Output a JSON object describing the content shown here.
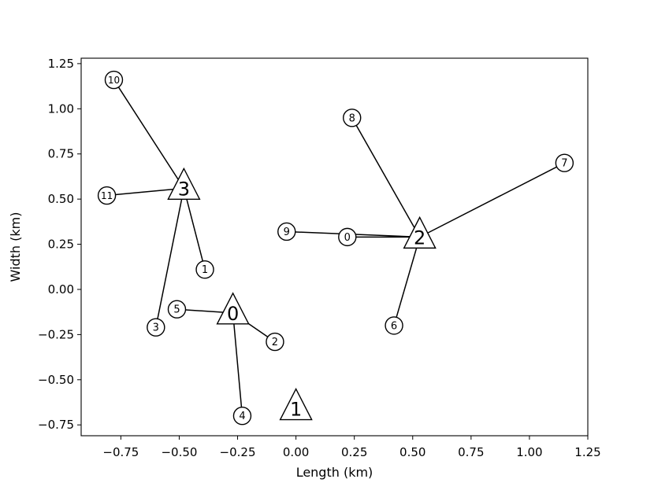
{
  "chart_data": {
    "type": "scatter",
    "title": "",
    "xlabel": "Length (km)",
    "ylabel": "Width (km)",
    "xlim": [
      -0.92,
      1.25
    ],
    "ylim": [
      -0.81,
      1.28
    ],
    "xticks": [
      -0.75,
      -0.5,
      -0.25,
      0.0,
      0.25,
      0.5,
      0.75,
      1.0,
      1.25
    ],
    "xtick_labels": [
      "−0.75",
      "−0.50",
      "−0.25",
      "0.00",
      "0.25",
      "0.50",
      "0.75",
      "1.00",
      "1.25"
    ],
    "yticks": [
      -0.75,
      -0.5,
      -0.25,
      0.0,
      0.25,
      0.5,
      0.75,
      1.0,
      1.25
    ],
    "ytick_labels": [
      "−0.75",
      "−0.50",
      "−0.25",
      "0.00",
      "0.25",
      "0.50",
      "0.75",
      "1.00",
      "1.25"
    ],
    "grid": false,
    "hubs": [
      {
        "label": "0",
        "x": -0.27,
        "y": -0.13
      },
      {
        "label": "1",
        "x": 0.0,
        "y": -0.66
      },
      {
        "label": "2",
        "x": 0.53,
        "y": 0.29
      },
      {
        "label": "3",
        "x": -0.48,
        "y": 0.56
      }
    ],
    "nodes": [
      {
        "label": "0",
        "x": 0.22,
        "y": 0.29
      },
      {
        "label": "1",
        "x": -0.39,
        "y": 0.11
      },
      {
        "label": "2",
        "x": -0.09,
        "y": -0.29
      },
      {
        "label": "3",
        "x": -0.6,
        "y": -0.21
      },
      {
        "label": "4",
        "x": -0.23,
        "y": -0.7
      },
      {
        "label": "5",
        "x": -0.51,
        "y": -0.11
      },
      {
        "label": "6",
        "x": 0.42,
        "y": -0.2
      },
      {
        "label": "7",
        "x": 1.15,
        "y": 0.7
      },
      {
        "label": "8",
        "x": 0.24,
        "y": 0.95
      },
      {
        "label": "9",
        "x": -0.04,
        "y": 0.32
      },
      {
        "label": "10",
        "x": -0.78,
        "y": 1.16
      },
      {
        "label": "11",
        "x": -0.81,
        "y": 0.52
      }
    ],
    "links": [
      {
        "hub": "0",
        "node": "5"
      },
      {
        "hub": "0",
        "node": "2"
      },
      {
        "hub": "0",
        "node": "4"
      },
      {
        "hub": "2",
        "node": "0"
      },
      {
        "hub": "2",
        "node": "9"
      },
      {
        "hub": "2",
        "node": "8"
      },
      {
        "hub": "2",
        "node": "7"
      },
      {
        "hub": "2",
        "node": "6"
      },
      {
        "hub": "3",
        "node": "10"
      },
      {
        "hub": "3",
        "node": "11"
      },
      {
        "hub": "3",
        "node": "1"
      },
      {
        "hub": "3",
        "node": "3"
      }
    ]
  }
}
